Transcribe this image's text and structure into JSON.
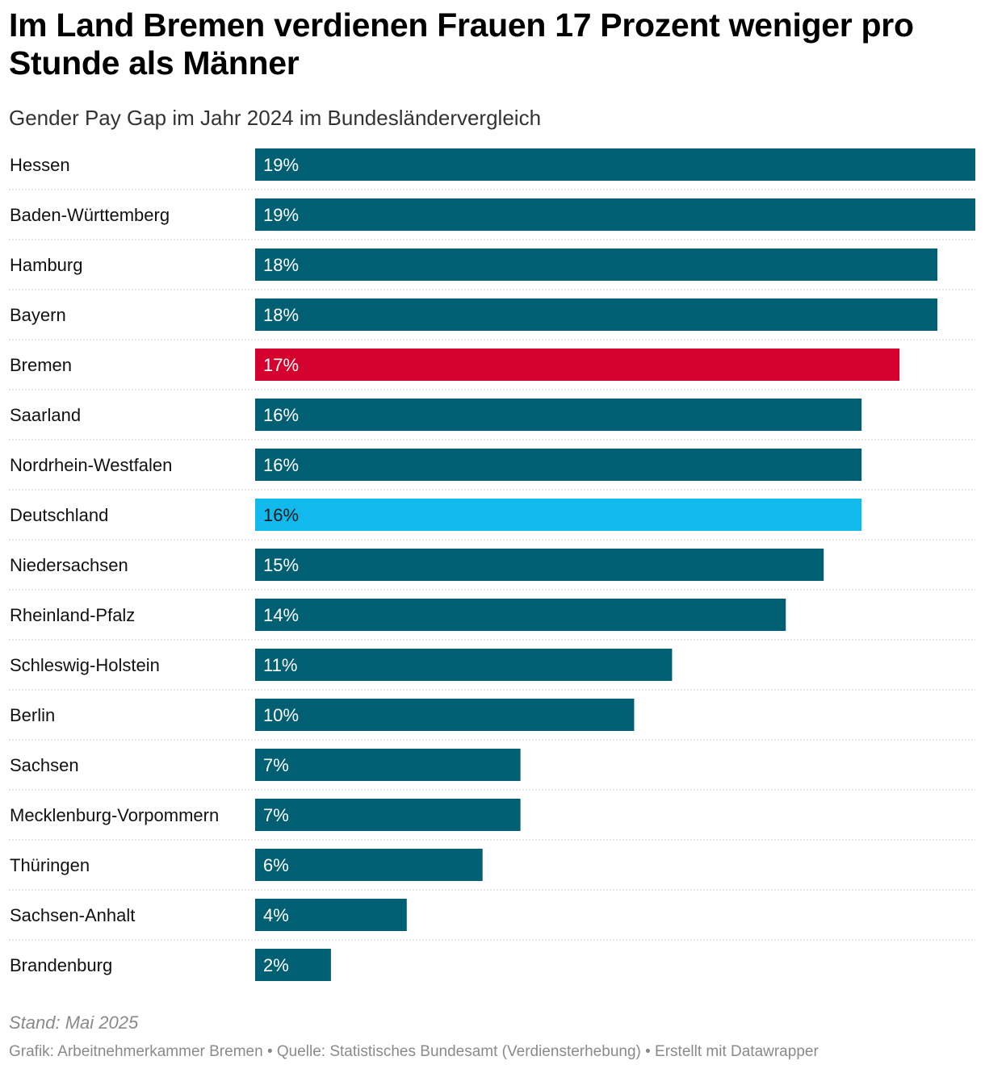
{
  "header": {
    "title": "Im Land Bremen verdienen Frauen 17 Prozent weniger pro Stunde als Männer",
    "subtitle": "Gender Pay Gap im Jahr 2024 im Bundesländervergleich"
  },
  "chart_data": {
    "type": "bar",
    "orientation": "horizontal",
    "title": "Im Land Bremen verdienen Frauen 17 Prozent weniger pro Stunde als Männer",
    "subtitle": "Gender Pay Gap im Jahr 2024 im Bundesländervergleich",
    "xlabel": "",
    "ylabel": "",
    "xlim": [
      0,
      19
    ],
    "unit": "%",
    "categories": [
      "Hessen",
      "Baden-Württemberg",
      "Hamburg",
      "Bayern",
      "Bremen",
      "Saarland",
      "Nordrhein-Westfalen",
      "Deutschland",
      "Niedersachsen",
      "Rheinland-Pfalz",
      "Schleswig-Holstein",
      "Berlin",
      "Sachsen",
      "Mecklenburg-Vorpommern",
      "Thüringen",
      "Sachsen-Anhalt",
      "Brandenburg"
    ],
    "values": [
      19,
      19,
      18,
      18,
      17,
      16,
      16,
      16,
      15,
      14,
      11,
      10,
      7,
      7,
      6,
      4,
      2
    ],
    "value_labels": [
      "19%",
      "19%",
      "18%",
      "18%",
      "17%",
      "16%",
      "16%",
      "16%",
      "15%",
      "14%",
      "11%",
      "10%",
      "7%",
      "7%",
      "6%",
      "4%",
      "2%"
    ],
    "highlights": {
      "Bremen": "#d4002d",
      "Deutschland": "#12b9ed"
    }
  },
  "colors": {
    "bar_default": "#005f73",
    "bar_bremen": "#d4002d",
    "bar_germany": "#12b9ed",
    "label_on_dark": "#ffffff",
    "label_on_light": "#1a1a1a",
    "row_separator": "#cccccc"
  },
  "footer": {
    "note": "Stand: Mai 2025",
    "credits": "Grafik: Arbeitnehmerkammer Bremen • Quelle: Statistisches Bundesamt (Verdiensterhebung) • Erstellt mit Datawrapper"
  }
}
